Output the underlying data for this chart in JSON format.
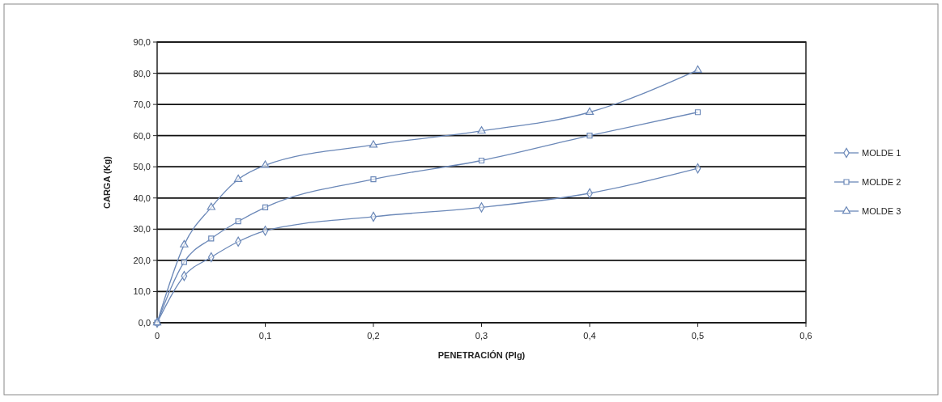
{
  "chart_data": {
    "type": "line",
    "xlabel": "PENETRACIÓN (Plg)",
    "ylabel": "CARGA (Kg)",
    "x": [
      0,
      0.025,
      0.05,
      0.075,
      0.1,
      0.2,
      0.3,
      0.4,
      0.5
    ],
    "xlim": [
      0,
      0.6
    ],
    "xticks": [
      0,
      {
        "value": 0.1,
        "label": "0,1"
      },
      {
        "value": 0.2,
        "label": "0,2"
      },
      {
        "value": 0.3,
        "label": "0,3"
      },
      {
        "value": 0.4,
        "label": "0,4"
      },
      {
        "value": 0.5,
        "label": "0,5"
      },
      {
        "value": 0.6,
        "label": "0,6"
      }
    ],
    "ylim": [
      0,
      90
    ],
    "yticks": [
      {
        "value": 0,
        "label": "0,0"
      },
      {
        "value": 10,
        "label": "10,0"
      },
      {
        "value": 20,
        "label": "20,0"
      },
      {
        "value": 30,
        "label": "30,0"
      },
      {
        "value": 40,
        "label": "40,0"
      },
      {
        "value": 50,
        "label": "50,0"
      },
      {
        "value": 60,
        "label": "60,0"
      },
      {
        "value": 70,
        "label": "70,0"
      },
      {
        "value": 80,
        "label": "80,0"
      },
      {
        "value": 90,
        "label": "90,0"
      }
    ],
    "grid": "y",
    "legend": "right",
    "series": [
      {
        "name": "MOLDE 1",
        "color": "#6b88b8",
        "marker": "diamond",
        "values": [
          0,
          15,
          21,
          26,
          29.5,
          34,
          37,
          41.5,
          49.5
        ]
      },
      {
        "name": "MOLDE 2",
        "color": "#6b88b8",
        "marker": "square",
        "values": [
          0,
          19.5,
          27,
          32.5,
          37,
          46,
          52,
          60,
          67.5
        ]
      },
      {
        "name": "MOLDE 3",
        "color": "#6b88b8",
        "marker": "triangle",
        "values": [
          0,
          25,
          37,
          46,
          50.5,
          57,
          61.5,
          67.5,
          81
        ]
      }
    ]
  }
}
